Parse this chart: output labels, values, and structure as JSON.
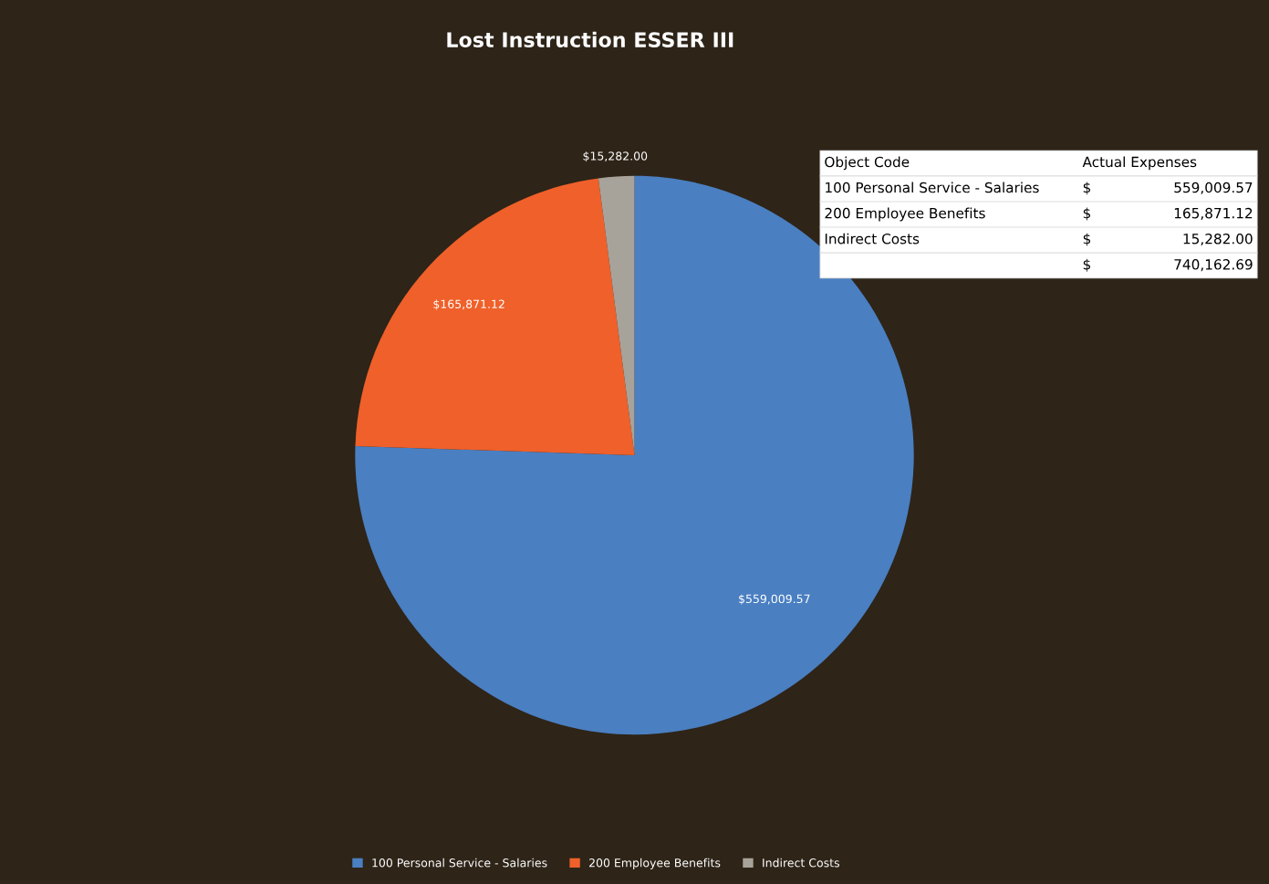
{
  "chart_data": {
    "type": "pie",
    "title": "Lost Instruction ESSER III",
    "categories": [
      "100 Personal Service - Salaries",
      "200 Employee Benefits",
      "Indirect Costs"
    ],
    "values": [
      559009.57,
      165871.12,
      15282.0
    ],
    "colors": [
      "#4a7fc1",
      "#f0602a",
      "#a8a39a"
    ],
    "value_labels": [
      "$559,009.57",
      "$165,871.12",
      "$15,282.00"
    ],
    "legend": "bottom",
    "annotations": [
      "Object Code",
      "Actual Expenses",
      "$",
      "559,009.57",
      "$",
      "165,871.12",
      "$",
      "15,282.00",
      "$",
      "740,162.69"
    ]
  }
}
